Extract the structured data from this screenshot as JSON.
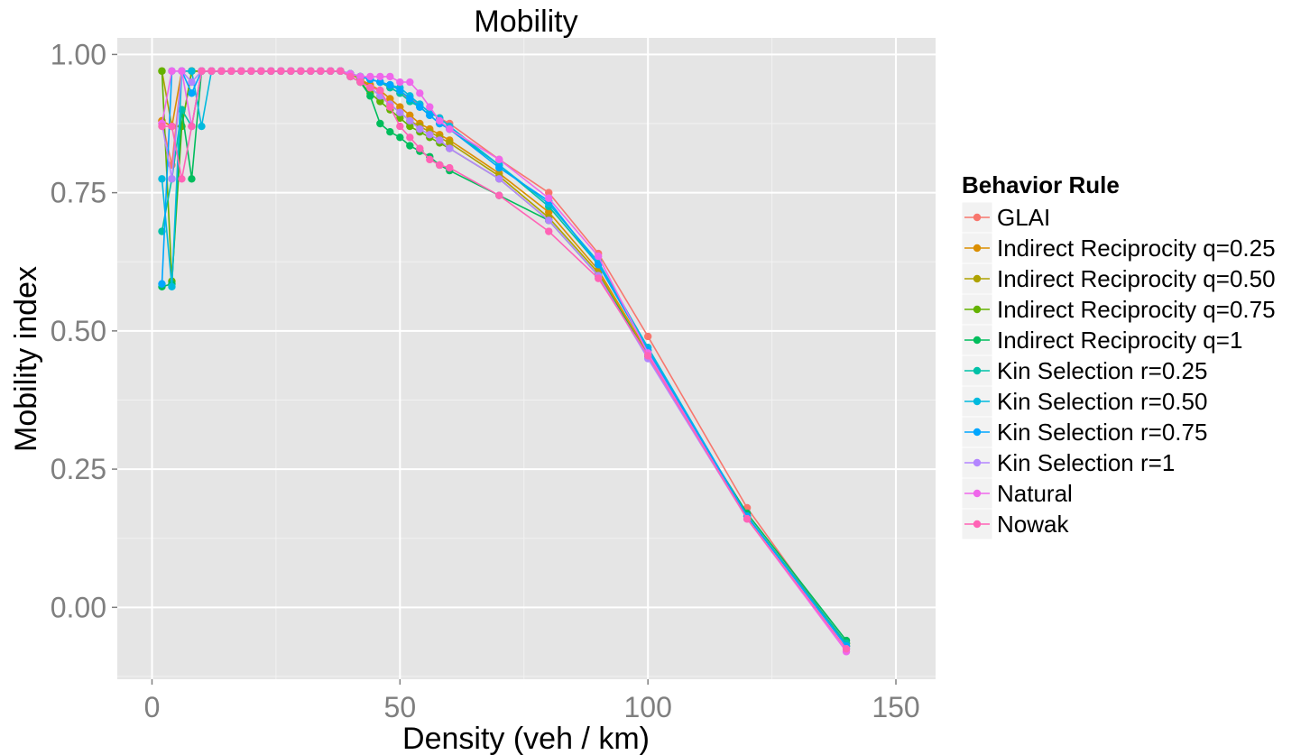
{
  "chart_data": {
    "type": "line",
    "title": "Mobility",
    "xlabel": "Density (veh / km)",
    "ylabel": "Mobility index",
    "xlim": [
      -7,
      158
    ],
    "ylim": [
      -0.13,
      1.03
    ],
    "x_ticks": [
      0,
      50,
      100,
      150
    ],
    "x_tick_labels": [
      "0",
      "50",
      "100",
      "150"
    ],
    "y_ticks": [
      0,
      0.25,
      0.5,
      0.75,
      1.0
    ],
    "y_tick_labels": [
      "0.00",
      "0.25",
      "0.50",
      "0.75",
      "1.00"
    ],
    "grid": true,
    "legend": {
      "title": "Behavior Rule",
      "position": "right"
    },
    "series": [
      {
        "name": "GLAI",
        "color": "#F8766D",
        "x": [
          2,
          4,
          6,
          8,
          10,
          12,
          14,
          16,
          18,
          20,
          22,
          24,
          26,
          28,
          30,
          32,
          34,
          36,
          38,
          40,
          42,
          44,
          46,
          48,
          50,
          52,
          54,
          56,
          58,
          60,
          70,
          80,
          90,
          100,
          120,
          140
        ],
        "y": [
          0.88,
          0.8,
          0.97,
          0.97,
          0.97,
          0.97,
          0.97,
          0.97,
          0.97,
          0.97,
          0.97,
          0.97,
          0.97,
          0.97,
          0.97,
          0.97,
          0.97,
          0.97,
          0.97,
          0.965,
          0.96,
          0.955,
          0.95,
          0.94,
          0.93,
          0.92,
          0.91,
          0.895,
          0.885,
          0.875,
          0.81,
          0.75,
          0.64,
          0.49,
          0.18,
          -0.07
        ]
      },
      {
        "name": "Indirect Reciprocity q=0.25",
        "color": "#DB8E00",
        "x": [
          2,
          4,
          6,
          8,
          10,
          12,
          14,
          16,
          18,
          20,
          22,
          24,
          26,
          28,
          30,
          32,
          34,
          36,
          38,
          40,
          42,
          44,
          46,
          48,
          50,
          52,
          54,
          56,
          58,
          60,
          70,
          80,
          90,
          100,
          120,
          140
        ],
        "y": [
          0.88,
          0.87,
          0.97,
          0.97,
          0.97,
          0.97,
          0.97,
          0.97,
          0.97,
          0.97,
          0.97,
          0.97,
          0.97,
          0.97,
          0.97,
          0.97,
          0.97,
          0.97,
          0.97,
          0.965,
          0.955,
          0.945,
          0.935,
          0.92,
          0.905,
          0.89,
          0.875,
          0.865,
          0.855,
          0.845,
          0.785,
          0.715,
          0.61,
          0.46,
          0.165,
          -0.07
        ]
      },
      {
        "name": "Indirect Reciprocity q=0.50",
        "color": "#AEA200",
        "x": [
          2,
          4,
          6,
          8,
          10,
          12,
          14,
          16,
          18,
          20,
          22,
          24,
          26,
          28,
          30,
          32,
          34,
          36,
          38,
          40,
          42,
          44,
          46,
          48,
          50,
          52,
          54,
          56,
          58,
          60,
          70,
          80,
          90,
          100,
          120,
          140
        ],
        "y": [
          0.97,
          0.87,
          0.87,
          0.97,
          0.97,
          0.97,
          0.97,
          0.97,
          0.97,
          0.97,
          0.97,
          0.97,
          0.97,
          0.97,
          0.97,
          0.97,
          0.97,
          0.97,
          0.97,
          0.965,
          0.955,
          0.94,
          0.925,
          0.91,
          0.895,
          0.88,
          0.87,
          0.86,
          0.85,
          0.84,
          0.78,
          0.705,
          0.605,
          0.455,
          0.165,
          -0.065
        ]
      },
      {
        "name": "Indirect Reciprocity q=0.75",
        "color": "#64B200",
        "x": [
          2,
          4,
          6,
          8,
          10,
          12,
          14,
          16,
          18,
          20,
          22,
          24,
          26,
          28,
          30,
          32,
          34,
          36,
          38,
          40,
          42,
          44,
          46,
          48,
          50,
          52,
          54,
          56,
          58,
          60,
          70,
          80,
          90,
          100,
          120,
          140
        ],
        "y": [
          0.97,
          0.59,
          0.87,
          0.97,
          0.97,
          0.97,
          0.97,
          0.97,
          0.97,
          0.97,
          0.97,
          0.97,
          0.97,
          0.97,
          0.97,
          0.97,
          0.97,
          0.97,
          0.97,
          0.96,
          0.95,
          0.93,
          0.915,
          0.9,
          0.885,
          0.87,
          0.86,
          0.85,
          0.84,
          0.83,
          0.775,
          0.7,
          0.6,
          0.455,
          0.165,
          -0.065
        ]
      },
      {
        "name": "Indirect Reciprocity q=1",
        "color": "#00BD5C",
        "x": [
          2,
          4,
          6,
          8,
          10,
          12,
          14,
          16,
          18,
          20,
          22,
          24,
          26,
          28,
          30,
          32,
          34,
          36,
          38,
          40,
          42,
          44,
          46,
          48,
          50,
          52,
          54,
          56,
          58,
          60,
          70,
          80,
          90,
          100,
          120,
          140
        ],
        "y": [
          0.58,
          0.585,
          0.9,
          0.775,
          0.97,
          0.97,
          0.97,
          0.97,
          0.97,
          0.97,
          0.97,
          0.97,
          0.97,
          0.97,
          0.97,
          0.97,
          0.97,
          0.97,
          0.97,
          0.96,
          0.95,
          0.925,
          0.875,
          0.86,
          0.85,
          0.835,
          0.825,
          0.815,
          0.8,
          0.79,
          0.745,
          0.7,
          0.6,
          0.455,
          0.17,
          -0.06
        ]
      },
      {
        "name": "Kin Selection r=0.25",
        "color": "#00C1A7",
        "x": [
          2,
          4,
          6,
          8,
          10,
          12,
          14,
          16,
          18,
          20,
          22,
          24,
          26,
          28,
          30,
          32,
          34,
          36,
          38,
          40,
          42,
          44,
          46,
          48,
          50,
          52,
          54,
          56,
          58,
          60,
          70,
          80,
          90,
          100,
          120,
          140
        ],
        "y": [
          0.68,
          0.775,
          0.9,
          0.87,
          0.97,
          0.97,
          0.97,
          0.97,
          0.97,
          0.97,
          0.97,
          0.97,
          0.97,
          0.97,
          0.97,
          0.97,
          0.97,
          0.97,
          0.97,
          0.965,
          0.96,
          0.955,
          0.95,
          0.94,
          0.93,
          0.915,
          0.905,
          0.89,
          0.875,
          0.865,
          0.8,
          0.725,
          0.62,
          0.465,
          0.165,
          -0.065
        ]
      },
      {
        "name": "Kin Selection r=0.50",
        "color": "#00BADE",
        "x": [
          2,
          4,
          6,
          8,
          10,
          12,
          14,
          16,
          18,
          20,
          22,
          24,
          26,
          28,
          30,
          32,
          34,
          36,
          38,
          40,
          42,
          44,
          46,
          48,
          50,
          52,
          54,
          56,
          58,
          60,
          70,
          80,
          90,
          100,
          120,
          140
        ],
        "y": [
          0.775,
          0.58,
          0.97,
          0.97,
          0.87,
          0.97,
          0.97,
          0.97,
          0.97,
          0.97,
          0.97,
          0.97,
          0.97,
          0.97,
          0.97,
          0.97,
          0.97,
          0.97,
          0.97,
          0.965,
          0.96,
          0.955,
          0.95,
          0.945,
          0.94,
          0.925,
          0.91,
          0.895,
          0.885,
          0.87,
          0.8,
          0.73,
          0.625,
          0.47,
          0.165,
          -0.07
        ]
      },
      {
        "name": "Kin Selection r=0.75",
        "color": "#00A6FF",
        "x": [
          2,
          4,
          6,
          8,
          10,
          12,
          14,
          16,
          18,
          20,
          22,
          24,
          26,
          28,
          30,
          32,
          34,
          36,
          38,
          40,
          42,
          44,
          46,
          48,
          50,
          52,
          54,
          56,
          58,
          60,
          70,
          80,
          90,
          100,
          120,
          140
        ],
        "y": [
          0.585,
          0.97,
          0.97,
          0.93,
          0.97,
          0.97,
          0.97,
          0.97,
          0.97,
          0.97,
          0.97,
          0.97,
          0.97,
          0.97,
          0.97,
          0.97,
          0.97,
          0.97,
          0.97,
          0.965,
          0.96,
          0.955,
          0.95,
          0.945,
          0.935,
          0.92,
          0.905,
          0.89,
          0.875,
          0.865,
          0.795,
          0.735,
          0.62,
          0.465,
          0.165,
          -0.07
        ]
      },
      {
        "name": "Kin Selection r=1",
        "color": "#B385FF",
        "x": [
          2,
          4,
          6,
          8,
          10,
          12,
          14,
          16,
          18,
          20,
          22,
          24,
          26,
          28,
          30,
          32,
          34,
          36,
          38,
          40,
          42,
          44,
          46,
          48,
          50,
          52,
          54,
          56,
          58,
          60,
          70,
          80,
          90,
          100,
          120,
          140
        ],
        "y": [
          0.875,
          0.775,
          0.97,
          0.95,
          0.97,
          0.97,
          0.97,
          0.97,
          0.97,
          0.97,
          0.97,
          0.97,
          0.97,
          0.97,
          0.97,
          0.97,
          0.97,
          0.97,
          0.97,
          0.96,
          0.95,
          0.94,
          0.925,
          0.91,
          0.895,
          0.88,
          0.865,
          0.855,
          0.845,
          0.83,
          0.775,
          0.7,
          0.6,
          0.45,
          0.16,
          -0.075
        ]
      },
      {
        "name": "Natural",
        "color": "#EF67EB",
        "x": [
          2,
          4,
          6,
          8,
          10,
          12,
          14,
          16,
          18,
          20,
          22,
          24,
          26,
          28,
          30,
          32,
          34,
          36,
          38,
          40,
          42,
          44,
          46,
          48,
          50,
          52,
          54,
          56,
          58,
          60,
          70,
          80,
          90,
          100,
          120,
          140
        ],
        "y": [
          0.875,
          0.97,
          0.97,
          0.87,
          0.97,
          0.97,
          0.97,
          0.97,
          0.97,
          0.97,
          0.97,
          0.97,
          0.97,
          0.97,
          0.97,
          0.97,
          0.97,
          0.97,
          0.97,
          0.965,
          0.96,
          0.96,
          0.96,
          0.96,
          0.95,
          0.95,
          0.93,
          0.905,
          0.88,
          0.865,
          0.81,
          0.74,
          0.635,
          0.46,
          0.16,
          -0.08
        ]
      },
      {
        "name": "Nowak",
        "color": "#FF63B6",
        "x": [
          2,
          4,
          6,
          8,
          10,
          12,
          14,
          16,
          18,
          20,
          22,
          24,
          26,
          28,
          30,
          32,
          34,
          36,
          38,
          40,
          42,
          44,
          46,
          48,
          50,
          52,
          54,
          56,
          58,
          60,
          70,
          80,
          90,
          100,
          120,
          140
        ],
        "y": [
          0.87,
          0.87,
          0.775,
          0.87,
          0.97,
          0.97,
          0.97,
          0.97,
          0.97,
          0.97,
          0.97,
          0.97,
          0.97,
          0.97,
          0.97,
          0.97,
          0.97,
          0.97,
          0.97,
          0.96,
          0.95,
          0.94,
          0.935,
          0.905,
          0.87,
          0.85,
          0.83,
          0.81,
          0.8,
          0.795,
          0.745,
          0.68,
          0.595,
          0.455,
          0.16,
          -0.075
        ]
      }
    ]
  }
}
